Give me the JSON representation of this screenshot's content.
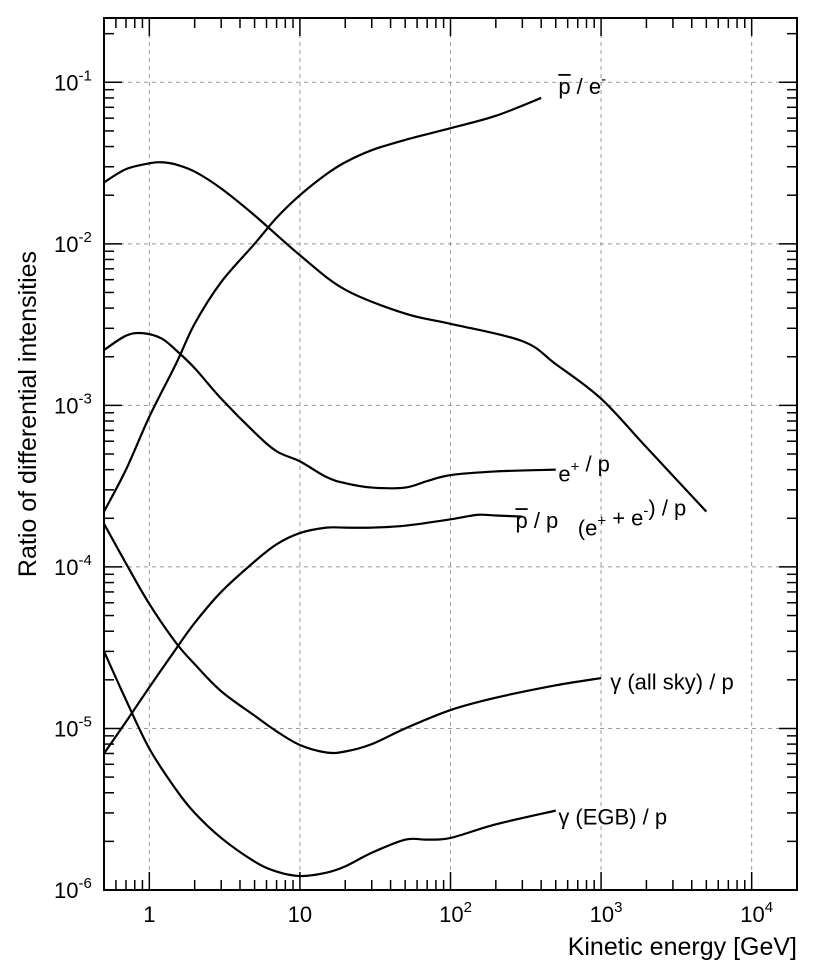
{
  "chart_data": {
    "type": "line",
    "title": "",
    "xlabel": "Kinetic energy [GeV]",
    "ylabel": "Ratio of differential intensities",
    "x_scale": "log",
    "y_scale": "log",
    "xlim": [
      0.5,
      20000
    ],
    "ylim": [
      1e-06,
      0.25
    ],
    "grid": true,
    "x_ticks": [
      {
        "value": 1,
        "base": "1",
        "exp": ""
      },
      {
        "value": 10,
        "base": "10",
        "exp": ""
      },
      {
        "value": 100,
        "base": "10",
        "exp": "2"
      },
      {
        "value": 1000,
        "base": "10",
        "exp": "3"
      },
      {
        "value": 10000,
        "base": "10",
        "exp": "4"
      }
    ],
    "y_ticks": [
      {
        "value": 1e-06,
        "base": "10",
        "exp": "-6"
      },
      {
        "value": 1e-05,
        "base": "10",
        "exp": "-5"
      },
      {
        "value": 0.0001,
        "base": "10",
        "exp": "-4"
      },
      {
        "value": 0.001,
        "base": "10",
        "exp": "-3"
      },
      {
        "value": 0.01,
        "base": "10",
        "exp": "-2"
      },
      {
        "value": 0.1,
        "base": "10",
        "exp": "-1"
      }
    ],
    "series": [
      {
        "name": "pbar-over-e",
        "label_parts": [
          {
            "t": "p",
            "over": true
          },
          {
            "t": " / e"
          },
          {
            "t": "-",
            "sup": true
          }
        ],
        "label_at": [
          520,
          0.095
        ],
        "x": [
          0.5,
          0.7,
          1,
          1.5,
          2,
          3,
          5,
          7,
          10,
          15,
          20,
          30,
          50,
          100,
          200,
          400
        ],
        "y": [
          0.00022,
          0.0004,
          0.00085,
          0.0018,
          0.0032,
          0.0058,
          0.01,
          0.0145,
          0.02,
          0.027,
          0.032,
          0.038,
          0.044,
          0.052,
          0.062,
          0.08
        ]
      },
      {
        "name": "electrons-plus-positrons-over-p",
        "label_parts": [
          {
            "t": "(e"
          },
          {
            "t": "+",
            "sup": true
          },
          {
            "t": " + e"
          },
          {
            "t": "-",
            "sup": true
          },
          {
            "t": ") / p"
          }
        ],
        "label_at": [
          700,
          0.000175
        ],
        "x": [
          0.5,
          0.7,
          1,
          1.2,
          1.5,
          2,
          3,
          5,
          10,
          20,
          50,
          100,
          300,
          500,
          1000,
          2000,
          5000
        ],
        "y": [
          0.024,
          0.029,
          0.0315,
          0.032,
          0.031,
          0.028,
          0.022,
          0.015,
          0.0085,
          0.0052,
          0.0037,
          0.0032,
          0.0025,
          0.0018,
          0.0011,
          0.00055,
          0.00022
        ]
      },
      {
        "name": "positrons-over-p",
        "label_parts": [
          {
            "t": "e"
          },
          {
            "t": "+",
            "sup": true
          },
          {
            "t": " / p"
          }
        ],
        "label_at": [
          520,
          0.00038
        ],
        "x": [
          0.5,
          0.7,
          0.9,
          1.2,
          1.5,
          2,
          3,
          5,
          7,
          10,
          15,
          20,
          30,
          50,
          70,
          100,
          200,
          500
        ],
        "y": [
          0.0022,
          0.0027,
          0.0028,
          0.0026,
          0.0022,
          0.0017,
          0.0011,
          0.00068,
          0.00052,
          0.00045,
          0.00036,
          0.00033,
          0.00031,
          0.00031,
          0.00034,
          0.00037,
          0.00039,
          0.0004
        ]
      },
      {
        "name": "pbar-over-p",
        "label_parts": [
          {
            "t": "p",
            "over": true
          },
          {
            "t": " / p"
          }
        ],
        "label_at": [
          270,
          0.000195
        ],
        "x": [
          0.5,
          0.7,
          1,
          1.5,
          2,
          3,
          5,
          7,
          10,
          15,
          20,
          30,
          50,
          100,
          150,
          200,
          300
        ],
        "y": [
          7e-06,
          1.1e-05,
          1.8e-05,
          3.1e-05,
          4.5e-05,
          7e-05,
          0.000108,
          0.000138,
          0.000162,
          0.000175,
          0.000175,
          0.000175,
          0.00018,
          0.000197,
          0.00021,
          0.000208,
          0.000205
        ]
      },
      {
        "name": "gamma-all-sky-over-p",
        "label_parts": [
          {
            "t": "γ (all sky) / p"
          }
        ],
        "label_at": [
          1150,
          1.95e-05
        ],
        "x": [
          0.5,
          0.7,
          1,
          1.5,
          2,
          3,
          5,
          7,
          10,
          15,
          20,
          30,
          50,
          100,
          200,
          500,
          1000
        ],
        "y": [
          0.000185,
          0.000105,
          5.9e-05,
          3.4e-05,
          2.5e-05,
          1.7e-05,
          1.2e-05,
          9.6e-06,
          7.9e-06,
          7.1e-06,
          7.2e-06,
          8e-06,
          1e-05,
          1.3e-05,
          1.55e-05,
          1.85e-05,
          2.05e-05
        ]
      },
      {
        "name": "gamma-egb-over-p",
        "label_parts": [
          {
            "t": "γ (EGB) / p"
          }
        ],
        "label_at": [
          520,
          2.85e-06
        ],
        "x": [
          0.5,
          0.7,
          1,
          1.5,
          2,
          3,
          5,
          7,
          10,
          15,
          20,
          30,
          50,
          70,
          100,
          200,
          500
        ],
        "y": [
          3e-05,
          1.5e-05,
          7.5e-06,
          4.2e-06,
          3e-06,
          2.1e-06,
          1.5e-06,
          1.3e-06,
          1.22e-06,
          1.28e-06,
          1.4e-06,
          1.7e-06,
          2.05e-06,
          2.05e-06,
          2.1e-06,
          2.55e-06,
          3.1e-06
        ]
      }
    ]
  }
}
